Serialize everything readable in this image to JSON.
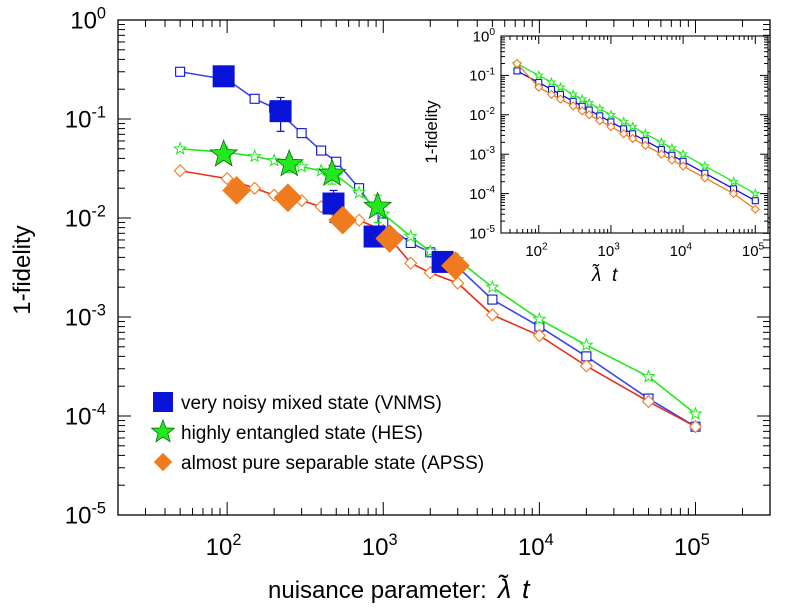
{
  "chart_data": [
    {
      "id": "main",
      "type": "line",
      "xscale": "log",
      "yscale": "log",
      "xlim": [
        20,
        300000
      ],
      "ylim": [
        1e-05,
        1
      ],
      "xlabel": "nuisance parameter:",
      "xlabel_symbol": "λ̃",
      "xlabel_var": "t",
      "ylabel": "1-fidelity",
      "x_ticks": [
        {
          "value": 100,
          "base": "10",
          "exp": "2"
        },
        {
          "value": 1000,
          "base": "10",
          "exp": "3"
        },
        {
          "value": 10000,
          "base": "10",
          "exp": "4"
        },
        {
          "value": 100000,
          "base": "10",
          "exp": "5"
        }
      ],
      "y_ticks": [
        {
          "value": 1,
          "base": "10",
          "exp": "0"
        },
        {
          "value": 0.1,
          "base": "10",
          "exp": "-1"
        },
        {
          "value": 0.01,
          "base": "10",
          "exp": "-2"
        },
        {
          "value": 0.001,
          "base": "10",
          "exp": "-3"
        },
        {
          "value": 0.0001,
          "base": "10",
          "exp": "-4"
        },
        {
          "value": 1e-05,
          "base": "10",
          "exp": "-5"
        }
      ],
      "legend": [
        {
          "label": "very noisy mixed state (VNMS)",
          "marker": "square",
          "color": "#0a14d8"
        },
        {
          "label": "highly entangled state (HES)",
          "marker": "star",
          "color": "#22e81e"
        },
        {
          "label": "almost pure separable state (APSS)",
          "marker": "diamond",
          "color": "#f07b1e"
        }
      ],
      "series": [
        {
          "name": "VNMS theory",
          "color": "#0a14d8",
          "line_color": "#3a46e6",
          "marker": "square",
          "filled": false,
          "x": [
            50,
            100,
            150,
            200,
            300,
            400,
            500,
            700,
            1000,
            1500,
            2000,
            3000,
            5000,
            10000,
            20000,
            50000,
            100000
          ],
          "y": [
            0.3,
            0.25,
            0.16,
            0.13,
            0.072,
            0.048,
            0.037,
            0.02,
            0.009,
            0.0056,
            0.0045,
            0.0032,
            0.0015,
            0.0008,
            0.0004,
            0.00015,
            7.8e-05
          ]
        },
        {
          "name": "HES theory",
          "color": "#22e81e",
          "line_color": "#22e81e",
          "marker": "star",
          "filled": false,
          "x": [
            50,
            100,
            150,
            200,
            300,
            400,
            500,
            700,
            1000,
            1500,
            2000,
            3000,
            5000,
            10000,
            20000,
            50000,
            100000
          ],
          "y": [
            0.05,
            0.046,
            0.042,
            0.038,
            0.033,
            0.03,
            0.027,
            0.018,
            0.011,
            0.0065,
            0.0046,
            0.0038,
            0.002,
            0.00095,
            0.00052,
            0.00025,
            0.000105
          ]
        },
        {
          "name": "APSS theory",
          "color": "#f07b1e",
          "line_color": "#e8301c",
          "marker": "diamond",
          "filled": false,
          "x": [
            50,
            100,
            150,
            200,
            300,
            400,
            500,
            700,
            1000,
            1500,
            2000,
            3000,
            5000,
            10000,
            20000,
            50000,
            100000
          ],
          "y": [
            0.03,
            0.025,
            0.02,
            0.017,
            0.015,
            0.013,
            0.011,
            0.0095,
            0.0075,
            0.0035,
            0.0028,
            0.0022,
            0.00105,
            0.00065,
            0.00032,
            0.00014,
            7.8e-05
          ]
        },
        {
          "name": "VNMS experiment",
          "color": "#0a14d8",
          "marker": "square",
          "filled": true,
          "x": [
            95,
            220,
            480,
            880,
            2400
          ],
          "y": [
            0.27,
            0.12,
            0.014,
            0.0065,
            0.0036
          ],
          "err": [
            0,
            0.045,
            0.005,
            0,
            0
          ]
        },
        {
          "name": "HES experiment",
          "color": "#22e81e",
          "marker": "star",
          "filled": true,
          "x": [
            95,
            250,
            470,
            920
          ],
          "y": [
            0.044,
            0.035,
            0.028,
            0.013
          ],
          "err": [
            0,
            0.006,
            0.006,
            0.004
          ]
        },
        {
          "name": "APSS experiment",
          "color": "#f07b1e",
          "marker": "diamond",
          "filled": true,
          "x": [
            115,
            245,
            550,
            1100,
            2900
          ],
          "y": [
            0.019,
            0.016,
            0.0095,
            0.0062,
            0.0033
          ],
          "err": [
            0,
            0,
            0,
            0,
            0
          ]
        }
      ]
    },
    {
      "id": "inset",
      "type": "line",
      "xscale": "log",
      "yscale": "log",
      "xlim": [
        30,
        150000
      ],
      "ylim": [
        1e-05,
        1
      ],
      "xlabel_symbol": "λ̃",
      "xlabel_var": "t",
      "ylabel": "1-fidelity",
      "x_ticks": [
        {
          "value": 100,
          "base": "10",
          "exp": "2"
        },
        {
          "value": 1000,
          "base": "10",
          "exp": "3"
        },
        {
          "value": 10000,
          "base": "10",
          "exp": "4"
        },
        {
          "value": 100000,
          "base": "10",
          "exp": "5"
        }
      ],
      "y_ticks": [
        {
          "value": 1,
          "base": "10",
          "exp": "0"
        },
        {
          "value": 0.1,
          "base": "10",
          "exp": "-1"
        },
        {
          "value": 0.01,
          "base": "10",
          "exp": "-2"
        },
        {
          "value": 0.001,
          "base": "10",
          "exp": "-3"
        },
        {
          "value": 0.0001,
          "base": "10",
          "exp": "-4"
        },
        {
          "value": 1e-05,
          "base": "10",
          "exp": "-5"
        }
      ],
      "series": [
        {
          "name": "VNMS",
          "color": "#0a14d8",
          "line_color": "#0a14d8",
          "marker": "square",
          "filled": false,
          "x": [
            50,
            100,
            150,
            200,
            300,
            400,
            500,
            700,
            1000,
            1500,
            2000,
            3000,
            5000,
            7000,
            10000,
            20000,
            50000,
            100000
          ],
          "y": [
            0.13,
            0.066,
            0.044,
            0.033,
            0.022,
            0.0165,
            0.0132,
            0.0094,
            0.0066,
            0.0044,
            0.0033,
            0.0022,
            0.00132,
            0.00094,
            0.00066,
            0.00033,
            0.000132,
            6.6e-05
          ]
        },
        {
          "name": "HES",
          "color": "#22e81e",
          "line_color": "#22e81e",
          "marker": "star",
          "filled": false,
          "x": [
            50,
            100,
            150,
            200,
            300,
            400,
            500,
            700,
            1000,
            1500,
            2000,
            3000,
            5000,
            7000,
            10000,
            20000,
            50000,
            100000
          ],
          "y": [
            0.2,
            0.1,
            0.067,
            0.05,
            0.033,
            0.025,
            0.02,
            0.0143,
            0.01,
            0.0067,
            0.005,
            0.0033,
            0.002,
            0.00143,
            0.001,
            0.0005,
            0.0002,
            0.0001
          ]
        },
        {
          "name": "APSS",
          "color": "#f07b1e",
          "line_color": "#f07b1e",
          "marker": "diamond",
          "filled": false,
          "x": [
            50,
            100,
            150,
            200,
            300,
            400,
            500,
            700,
            1000,
            1500,
            2000,
            3000,
            5000,
            7000,
            10000,
            20000,
            50000,
            100000
          ],
          "y": [
            0.2,
            0.05,
            0.033,
            0.025,
            0.0167,
            0.0125,
            0.01,
            0.0071,
            0.005,
            0.0033,
            0.0025,
            0.00167,
            0.001,
            0.00071,
            0.0005,
            0.00025,
            0.0001,
            4e-05
          ]
        }
      ]
    }
  ]
}
